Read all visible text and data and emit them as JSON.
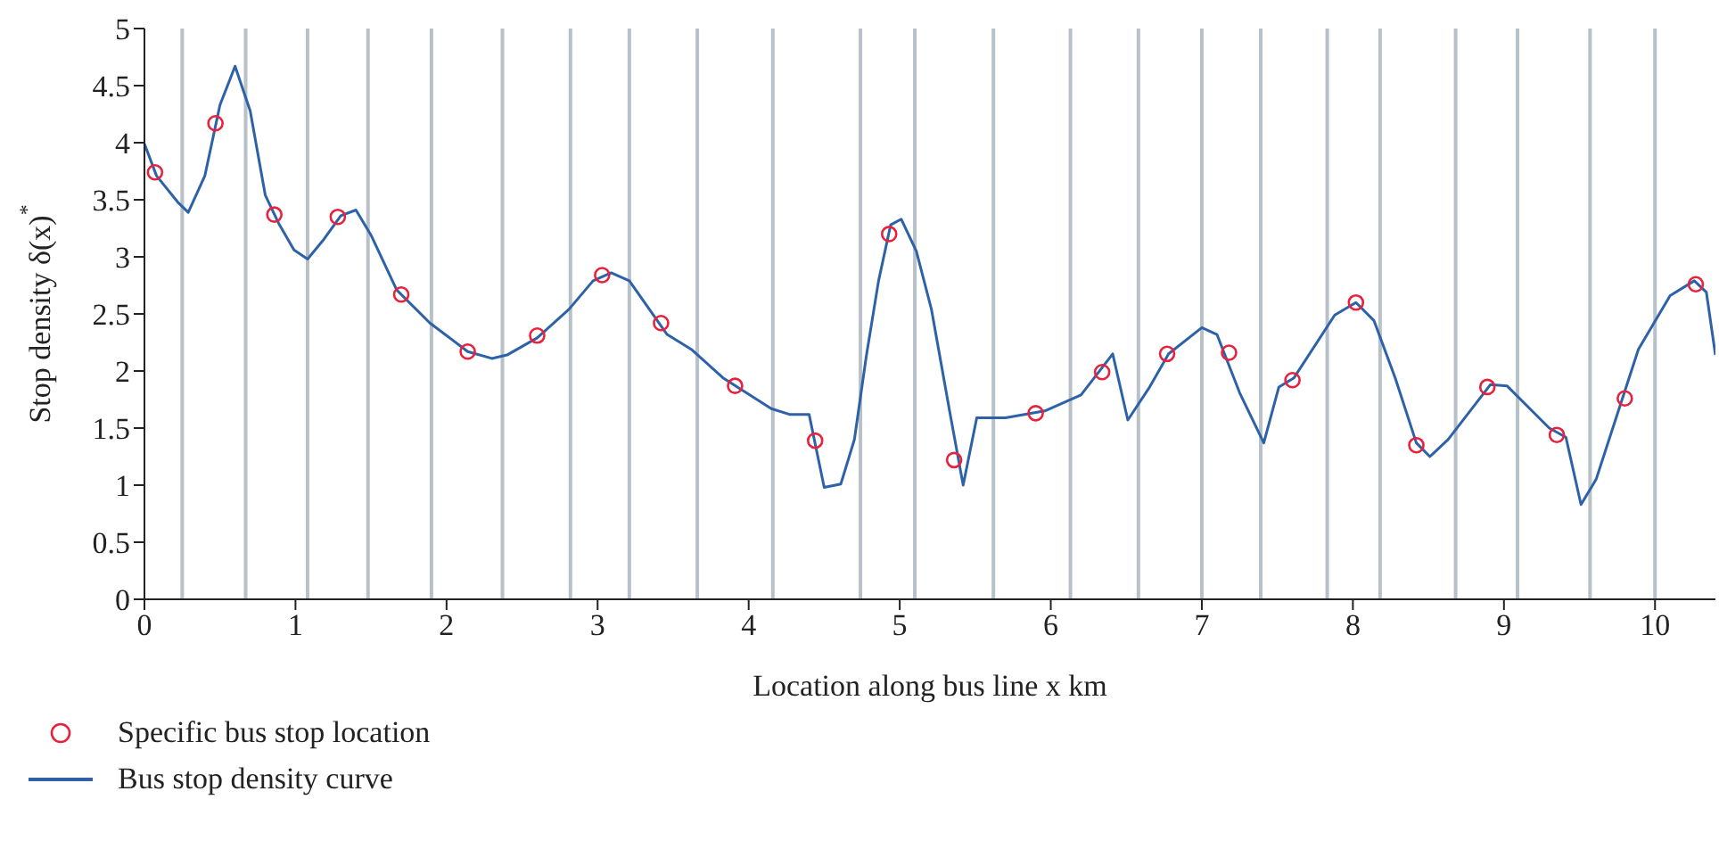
{
  "chart_data": {
    "type": "line",
    "xlabel": "Location along bus line x km",
    "ylabel": "Stop density δ(x)$^{*}$",
    "xlim": [
      0,
      10.4
    ],
    "xticks": [
      0,
      1,
      2,
      3,
      4,
      5,
      6,
      7,
      8,
      9,
      10
    ],
    "ylim": [
      0,
      5
    ],
    "yticks": [
      0,
      0.5,
      1,
      1.5,
      2,
      2.5,
      3,
      3.5,
      4,
      4.5,
      5
    ],
    "grid": false,
    "legend": "bottom",
    "series": [
      {
        "name": "Specific bus stop location",
        "type": "scatter",
        "color": "#e8213c",
        "marker": "circle",
        "x": [
          0.07,
          0.47,
          0.86,
          1.28,
          1.7,
          2.14,
          2.6,
          3.03,
          3.42,
          3.91,
          4.44,
          4.93,
          5.36,
          5.9,
          6.34,
          6.77,
          7.18,
          7.6,
          8.02,
          8.42,
          8.89,
          9.35,
          9.8,
          10.27
        ],
        "values": [
          3.74,
          4.17,
          3.37,
          3.35,
          2.67,
          2.17,
          2.31,
          2.84,
          2.42,
          1.87,
          1.39,
          3.2,
          1.22,
          1.63,
          1.99,
          2.15,
          2.16,
          1.92,
          2.6,
          1.35,
          1.86,
          1.44,
          1.76,
          2.76
        ]
      },
      {
        "name": "Bus stop density curve",
        "color": "#2e62a8",
        "marker": "none",
        "line_style": "solid",
        "x": [
          0,
          0.08,
          0.22,
          0.29,
          0.4,
          0.5,
          0.6,
          0.7,
          0.8,
          0.89,
          0.99,
          1.08,
          1.18,
          1.3,
          1.4,
          1.5,
          1.67,
          1.89,
          2.14,
          2.3,
          2.4,
          2.6,
          2.81,
          2.97,
          3.09,
          3.21,
          3.46,
          3.62,
          3.83,
          4.15,
          4.27,
          4.4,
          4.5,
          4.61,
          4.7,
          4.78,
          4.86,
          4.94,
          5.01,
          5.11,
          5.21,
          5.33,
          5.42,
          5.51,
          5.7,
          5.96,
          6.2,
          6.41,
          6.51,
          6.65,
          6.78,
          7.0,
          7.1,
          7.25,
          7.41,
          7.51,
          7.61,
          7.88,
          8.02,
          8.14,
          8.28,
          8.42,
          8.51,
          8.63,
          8.91,
          9.02,
          9.3,
          9.41,
          9.51,
          9.61,
          9.89,
          10.1,
          10.26,
          10.34,
          10.4
        ],
        "values": [
          3.99,
          3.71,
          3.48,
          3.39,
          3.71,
          4.33,
          4.67,
          4.28,
          3.54,
          3.29,
          3.06,
          2.98,
          3.14,
          3.36,
          3.41,
          3.19,
          2.71,
          2.42,
          2.17,
          2.11,
          2.14,
          2.29,
          2.54,
          2.79,
          2.86,
          2.79,
          2.32,
          2.19,
          1.94,
          1.67,
          1.62,
          1.62,
          0.98,
          1.01,
          1.4,
          2.14,
          2.79,
          3.28,
          3.33,
          3.05,
          2.54,
          1.65,
          1.0,
          1.59,
          1.59,
          1.65,
          1.79,
          2.15,
          1.57,
          1.85,
          2.15,
          2.38,
          2.32,
          1.81,
          1.37,
          1.86,
          1.94,
          2.49,
          2.6,
          2.44,
          1.94,
          1.37,
          1.25,
          1.4,
          1.88,
          1.87,
          1.5,
          1.42,
          0.83,
          1.05,
          2.19,
          2.66,
          2.79,
          2.69,
          2.14
        ]
      }
    ],
    "ref_lines": [
      {
        "axis": "x",
        "value": 0.25,
        "color": "#b8c0c8"
      },
      {
        "axis": "x",
        "value": 0.67,
        "color": "#b8c0c8"
      },
      {
        "axis": "x",
        "value": 1.08,
        "color": "#b8c0c8"
      },
      {
        "axis": "x",
        "value": 1.48,
        "color": "#b8c0c8"
      },
      {
        "axis": "x",
        "value": 1.9,
        "color": "#b8c0c8"
      },
      {
        "axis": "x",
        "value": 2.37,
        "color": "#b8c0c8"
      },
      {
        "axis": "x",
        "value": 2.82,
        "color": "#b8c0c8"
      },
      {
        "axis": "x",
        "value": 3.21,
        "color": "#b8c0c8"
      },
      {
        "axis": "x",
        "value": 3.66,
        "color": "#b8c0c8"
      },
      {
        "axis": "x",
        "value": 4.16,
        "color": "#b8c0c8"
      },
      {
        "axis": "x",
        "value": 4.74,
        "color": "#b8c0c8"
      },
      {
        "axis": "x",
        "value": 5.1,
        "color": "#b8c0c8"
      },
      {
        "axis": "x",
        "value": 5.62,
        "color": "#b8c0c8"
      },
      {
        "axis": "x",
        "value": 6.13,
        "color": "#b8c0c8"
      },
      {
        "axis": "x",
        "value": 6.58,
        "color": "#b8c0c8"
      },
      {
        "axis": "x",
        "value": 7.0,
        "color": "#b8c0c8"
      },
      {
        "axis": "x",
        "value": 7.39,
        "color": "#b8c0c8"
      },
      {
        "axis": "x",
        "value": 7.83,
        "color": "#b8c0c8"
      },
      {
        "axis": "x",
        "value": 8.18,
        "color": "#b8c0c8"
      },
      {
        "axis": "x",
        "value": 8.68,
        "color": "#b8c0c8"
      },
      {
        "axis": "x",
        "value": 9.09,
        "color": "#b8c0c8"
      },
      {
        "axis": "x",
        "value": 9.57,
        "color": "#b8c0c8"
      },
      {
        "axis": "x",
        "value": 10.0,
        "color": "#b8c0c8"
      }
    ]
  }
}
